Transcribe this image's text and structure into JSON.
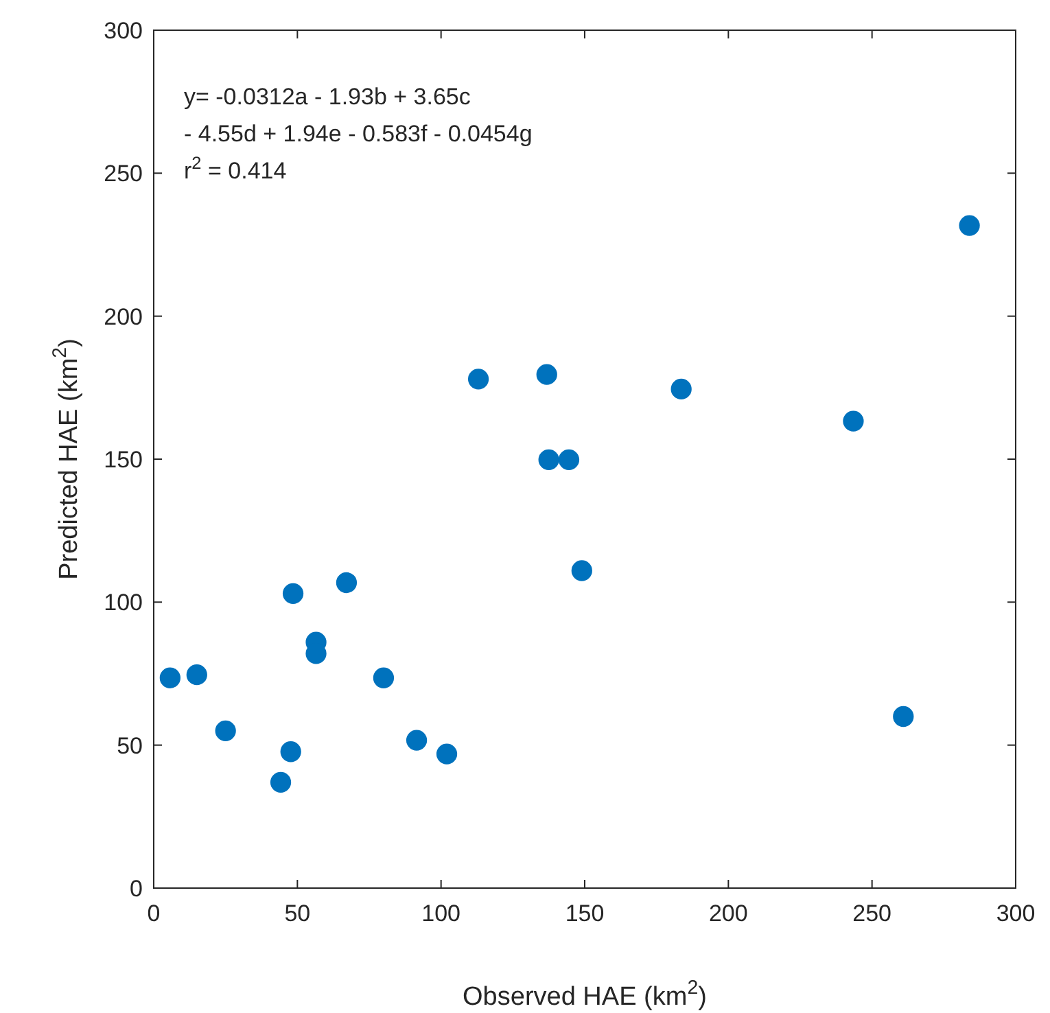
{
  "chart_data": {
    "type": "scatter",
    "xlabel": "Observed HAE (km$^{2}$)",
    "ylabel": "Predicted HAE (km$^{2}$)",
    "annotations": [
      "y= -0.0312a - 1.93b + 3.65c",
      "- 4.55d + 1.94e - 0.583f - 0.0454g",
      "r$^{2}$ = 0.414"
    ],
    "x": [
      5.7,
      15,
      25,
      44.2,
      47.7,
      48.5,
      56.5,
      56.5,
      67.1,
      80,
      91.5,
      102,
      113,
      136.8,
      137.5,
      144.5,
      149,
      183.6,
      243.5,
      260.9,
      283.9
    ],
    "series": [
      {
        "color": "#0072bd",
        "values": [
          73.5,
          74.6,
          55,
          37,
          47.7,
          103,
          86,
          82,
          106.8,
          73.5,
          51.7,
          46.9,
          178,
          179.6,
          149.8,
          149.8,
          111,
          174.5,
          163.3,
          60,
          231.7
        ]
      }
    ],
    "marker": "circle",
    "grid": false,
    "xlim": [
      0,
      300
    ],
    "ylim": [
      0,
      300
    ],
    "xticks": [
      0,
      50,
      100,
      150,
      200,
      250,
      300
    ],
    "yticks": [
      0,
      50,
      100,
      150,
      200,
      250,
      300
    ]
  }
}
